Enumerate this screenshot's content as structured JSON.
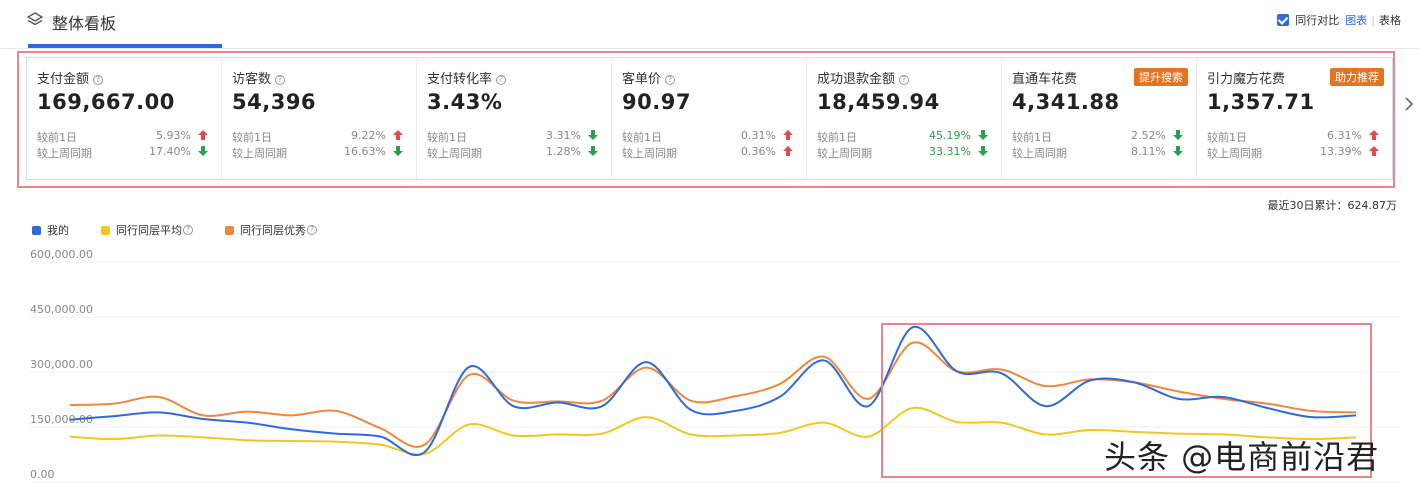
{
  "header": {
    "title": "整体看板",
    "compare_label": "同行对比",
    "view_chart": "图表",
    "separator": "|",
    "view_table": "表格"
  },
  "metrics": [
    {
      "label": "支付金额",
      "value": "169,667.00",
      "badge": "",
      "rows": [
        {
          "label": "较前1日",
          "pct": "5.93%",
          "dir": "up",
          "color": "#e04b4b"
        },
        {
          "label": "较上周同期",
          "pct": "17.40%",
          "dir": "down",
          "color": "#2aa04a"
        }
      ]
    },
    {
      "label": "访客数",
      "value": "54,396",
      "badge": "",
      "rows": [
        {
          "label": "较前1日",
          "pct": "9.22%",
          "dir": "up",
          "color": "#e04b4b"
        },
        {
          "label": "较上周同期",
          "pct": "16.63%",
          "dir": "down",
          "color": "#2aa04a"
        }
      ]
    },
    {
      "label": "支付转化率",
      "value": "3.43%",
      "badge": "",
      "rows": [
        {
          "label": "较前1日",
          "pct": "3.31%",
          "dir": "down",
          "color": "#2aa04a"
        },
        {
          "label": "较上周同期",
          "pct": "1.28%",
          "dir": "down",
          "color": "#2aa04a"
        }
      ]
    },
    {
      "label": "客单价",
      "value": "90.97",
      "badge": "",
      "rows": [
        {
          "label": "较前1日",
          "pct": "0.31%",
          "dir": "up",
          "color": "#e04b4b"
        },
        {
          "label": "较上周同期",
          "pct": "0.36%",
          "dir": "up",
          "color": "#e04b4b"
        }
      ]
    },
    {
      "label": "成功退款金额",
      "value": "18,459.94",
      "badge": "",
      "rows": [
        {
          "label": "较前1日",
          "pct": "45.19%",
          "dir": "down",
          "color": "#2aa04a",
          "green": true
        },
        {
          "label": "较上周同期",
          "pct": "33.31%",
          "dir": "down",
          "color": "#2aa04a",
          "green": true
        }
      ]
    },
    {
      "label": "直通车花费",
      "value": "4,341.88",
      "badge": "提升搜索",
      "rows": [
        {
          "label": "较前1日",
          "pct": "2.52%",
          "dir": "down",
          "color": "#2aa04a"
        },
        {
          "label": "较上周同期",
          "pct": "8.11%",
          "dir": "down",
          "color": "#2aa04a"
        }
      ]
    },
    {
      "label": "引力魔方花费",
      "value": "1,357.71",
      "badge": "助力推荐",
      "rows": [
        {
          "label": "较前1日",
          "pct": "6.31%",
          "dir": "up",
          "color": "#e04b4b"
        },
        {
          "label": "较上周同期",
          "pct": "13.39%",
          "dir": "up",
          "color": "#e04b4b"
        }
      ]
    }
  ],
  "cumulative": "最近30日累计：624.87万",
  "legend": [
    {
      "label": "我的",
      "color": "#2f6bd8",
      "help": false
    },
    {
      "label": "同行同层平均",
      "color": "#f2c81e",
      "help": true
    },
    {
      "label": "同行同层优秀",
      "color": "#f0873c",
      "help": true
    }
  ],
  "watermark": "头条 @电商前沿君",
  "chart_data": {
    "type": "line",
    "yticks": [
      "0.00",
      "150,000.00",
      "300,000.00",
      "450,000.00",
      "600,000.00"
    ],
    "ylim": [
      0,
      600000
    ],
    "x": [
      1,
      2,
      3,
      4,
      5,
      6,
      7,
      8,
      9,
      10,
      11,
      12,
      13,
      14,
      15,
      16,
      17,
      18,
      19,
      20,
      21,
      22,
      23,
      24,
      25,
      26,
      27,
      28,
      29,
      30
    ],
    "series": [
      {
        "name": "我的",
        "color": "#2f6bd8",
        "values": [
          148000,
          158000,
          168000,
          150000,
          140000,
          122000,
          110000,
          102000,
          60000,
          292000,
          185000,
          195000,
          185000,
          305000,
          175000,
          172000,
          210000,
          310000,
          185000,
          400000,
          280000,
          275000,
          185000,
          255000,
          250000,
          205000,
          210000,
          180000,
          155000,
          160000
        ]
      },
      {
        "name": "同行同层平均",
        "color": "#f2c81e",
        "values": [
          102000,
          95000,
          105000,
          100000,
          92000,
          90000,
          88000,
          80000,
          55000,
          135000,
          105000,
          108000,
          110000,
          155000,
          108000,
          105000,
          112000,
          140000,
          102000,
          180000,
          142000,
          140000,
          108000,
          120000,
          115000,
          110000,
          108000,
          100000,
          95000,
          100000
        ]
      },
      {
        "name": "同行同层优秀",
        "color": "#f0873c",
        "values": [
          188000,
          192000,
          210000,
          160000,
          170000,
          160000,
          172000,
          125000,
          80000,
          270000,
          200000,
          198000,
          200000,
          290000,
          200000,
          212000,
          245000,
          320000,
          205000,
          358000,
          280000,
          285000,
          240000,
          258000,
          250000,
          225000,
          205000,
          192000,
          172000,
          168000
        ]
      }
    ]
  }
}
